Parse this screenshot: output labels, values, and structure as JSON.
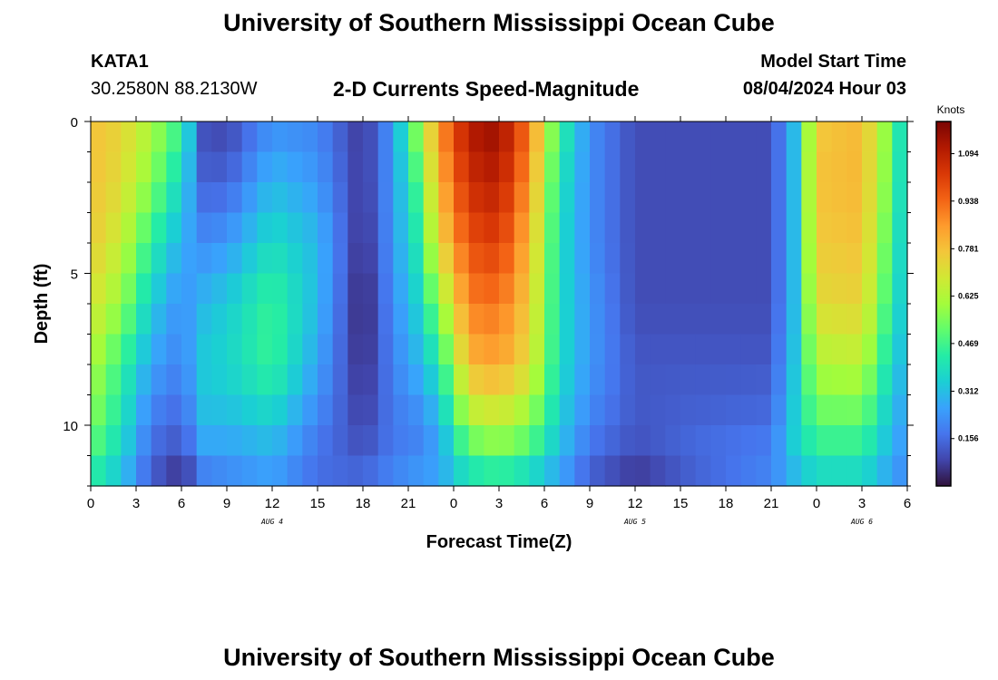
{
  "header": {
    "title": "University of Southern Mississippi Ocean Cube",
    "station": "KATA1",
    "coords": "30.2580N  88.2130W",
    "plot_title": "2-D Currents Speed-Magnitude",
    "model_start_label": "Model Start Time",
    "model_start_value": "08/04/2024 Hour 03"
  },
  "footer": {
    "title": "University of Southern Mississippi Ocean Cube"
  },
  "colors": {
    "ramp": [
      "#30123b",
      "#4145ab",
      "#4675ed",
      "#39a2fc",
      "#1bcfd4",
      "#24eca6",
      "#61fc6c",
      "#a4fc3b",
      "#d1e834",
      "#f3c63a",
      "#fe9b2d",
      "#f36315",
      "#d93806",
      "#b11901",
      "#7a0403"
    ]
  },
  "chart_data": {
    "type": "heatmap",
    "xlabel": "Forecast Time(Z)",
    "ylabel": "Depth (ft)",
    "x_hours_range": [
      0,
      54
    ],
    "ylim": [
      0,
      12
    ],
    "x_ticks": [
      {
        "hour": 0,
        "label": "0"
      },
      {
        "hour": 3,
        "label": "3"
      },
      {
        "hour": 6,
        "label": "6"
      },
      {
        "hour": 9,
        "label": "9"
      },
      {
        "hour": 12,
        "label": "12"
      },
      {
        "hour": 15,
        "label": "15"
      },
      {
        "hour": 18,
        "label": "18"
      },
      {
        "hour": 21,
        "label": "21"
      },
      {
        "hour": 24,
        "label": "0"
      },
      {
        "hour": 27,
        "label": "3"
      },
      {
        "hour": 30,
        "label": "6"
      },
      {
        "hour": 33,
        "label": "9"
      },
      {
        "hour": 36,
        "label": "12"
      },
      {
        "hour": 39,
        "label": "15"
      },
      {
        "hour": 42,
        "label": "18"
      },
      {
        "hour": 45,
        "label": "21"
      },
      {
        "hour": 48,
        "label": "0"
      },
      {
        "hour": 51,
        "label": "3"
      },
      {
        "hour": 54,
        "label": "6"
      }
    ],
    "date_labels": [
      {
        "hour": 12,
        "label": "AUG 4"
      },
      {
        "hour": 36,
        "label": "AUG 5"
      },
      {
        "hour": 51,
        "label": "AUG 6"
      }
    ],
    "y_ticks": [
      {
        "depth": 0,
        "label": "0"
      },
      {
        "depth": 5,
        "label": "5"
      },
      {
        "depth": 10,
        "label": "10"
      }
    ],
    "colorbar": {
      "unit": "Knots",
      "min": 0.0,
      "max": 1.2,
      "labels": [
        "1.094",
        "0.938",
        "0.781",
        "0.625",
        "0.469",
        "0.312",
        "0.156"
      ]
    },
    "rows": 12,
    "cols": 54,
    "note": "Speed (knots) by forecast hour (x) and depth band (y); model reproduced from color pattern.",
    "profiles": {
      "depth_nodes": [
        0,
        2,
        4,
        6,
        8,
        10,
        11,
        12
      ],
      "time_nodes": [
        {
          "h": 0,
          "s": [
            0.78,
            0.78,
            0.76,
            0.7,
            0.62,
            0.56,
            0.48,
            0.42
          ]
        },
        {
          "h": 2,
          "s": [
            0.74,
            0.72,
            0.66,
            0.58,
            0.46,
            0.4,
            0.36,
            0.3
          ]
        },
        {
          "h": 4,
          "s": [
            0.62,
            0.56,
            0.44,
            0.34,
            0.26,
            0.18,
            0.15,
            0.12
          ]
        },
        {
          "h": 6,
          "s": [
            0.46,
            0.36,
            0.28,
            0.22,
            0.2,
            0.14,
            0.1,
            0.02
          ]
        },
        {
          "h": 7.5,
          "s": [
            0.1,
            0.14,
            0.22,
            0.3,
            0.34,
            0.3,
            0.24,
            0.16
          ]
        },
        {
          "h": 9,
          "s": [
            0.08,
            0.14,
            0.24,
            0.34,
            0.36,
            0.3,
            0.24,
            0.2
          ]
        },
        {
          "h": 12,
          "s": [
            0.22,
            0.3,
            0.38,
            0.46,
            0.46,
            0.34,
            0.28,
            0.24
          ]
        },
        {
          "h": 15,
          "s": [
            0.2,
            0.24,
            0.3,
            0.3,
            0.26,
            0.2,
            0.16,
            0.16
          ]
        },
        {
          "h": 18,
          "s": [
            0.06,
            0.06,
            0.04,
            0.02,
            0.04,
            0.08,
            0.12,
            0.16
          ]
        },
        {
          "h": 20,
          "s": [
            0.24,
            0.24,
            0.24,
            0.22,
            0.2,
            0.18,
            0.18,
            0.22
          ]
        },
        {
          "h": 21.5,
          "s": [
            0.56,
            0.46,
            0.4,
            0.34,
            0.28,
            0.2,
            0.2,
            0.26
          ]
        },
        {
          "h": 23,
          "s": [
            0.86,
            0.8,
            0.72,
            0.56,
            0.4,
            0.28,
            0.24,
            0.28
          ]
        },
        {
          "h": 25,
          "s": [
            1.12,
            1.06,
            0.98,
            0.9,
            0.8,
            0.6,
            0.46,
            0.36
          ]
        },
        {
          "h": 27,
          "s": [
            1.16,
            1.1,
            1.02,
            0.92,
            0.84,
            0.64,
            0.52,
            0.38
          ]
        },
        {
          "h": 29,
          "s": [
            0.92,
            0.86,
            0.8,
            0.76,
            0.72,
            0.56,
            0.46,
            0.32
          ]
        },
        {
          "h": 31,
          "s": [
            0.46,
            0.4,
            0.38,
            0.38,
            0.38,
            0.34,
            0.3,
            0.24
          ]
        },
        {
          "h": 33,
          "s": [
            0.22,
            0.22,
            0.22,
            0.24,
            0.24,
            0.2,
            0.16,
            0.12
          ]
        },
        {
          "h": 36,
          "s": [
            0.1,
            0.1,
            0.1,
            0.1,
            0.12,
            0.12,
            0.1,
            0.04
          ]
        },
        {
          "h": 40,
          "s": [
            0.1,
            0.1,
            0.1,
            0.1,
            0.12,
            0.14,
            0.16,
            0.12
          ]
        },
        {
          "h": 45,
          "s": [
            0.1,
            0.1,
            0.1,
            0.1,
            0.12,
            0.16,
            0.2,
            0.2
          ]
        },
        {
          "h": 46.5,
          "s": [
            0.3,
            0.3,
            0.3,
            0.3,
            0.32,
            0.34,
            0.34,
            0.26
          ]
        },
        {
          "h": 48,
          "s": [
            0.76,
            0.78,
            0.76,
            0.72,
            0.62,
            0.5,
            0.42,
            0.34
          ]
        },
        {
          "h": 51,
          "s": [
            0.8,
            0.8,
            0.78,
            0.74,
            0.64,
            0.5,
            0.42,
            0.34
          ]
        },
        {
          "h": 53,
          "s": [
            0.52,
            0.5,
            0.46,
            0.42,
            0.36,
            0.3,
            0.28,
            0.24
          ]
        },
        {
          "h": 54,
          "s": [
            0.3,
            0.3,
            0.3,
            0.3,
            0.28,
            0.24,
            0.22,
            0.2
          ]
        }
      ]
    }
  }
}
